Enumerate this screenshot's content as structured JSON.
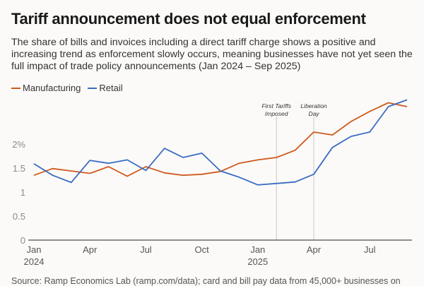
{
  "title": "Tariff announcement does not equal enforcement",
  "subtitle": "The share of bills and invoices including a direct tariff charge shows a positive and increasing trend as enforcement slowly occurs, meaning businesses have not yet seen the full impact of trade policy announcements (Jan 2024 – Sep 2025)",
  "footer": "Source: Ramp Economics Lab (ramp.com/data); card and bill pay data from 45,000+ businesses on",
  "colors": {
    "manufacturing": "#cf5a1c",
    "retail": "#3b6cc4"
  },
  "chart_data": {
    "type": "line",
    "title": "Tariff announcement does not equal enforcement",
    "xlabel": "",
    "ylabel": "",
    "ylim": [
      0,
      3
    ],
    "grid": false,
    "legend_position": "top-left",
    "x": [
      "Jan 2024",
      "Feb 2024",
      "Mar 2024",
      "Apr 2024",
      "May 2024",
      "Jun 2024",
      "Jul 2024",
      "Aug 2024",
      "Sep 2024",
      "Oct 2024",
      "Nov 2024",
      "Dec 2024",
      "Jan 2025",
      "Feb 2025",
      "Mar 2025",
      "Apr 2025",
      "May 2025",
      "Jun 2025",
      "Jul 2025",
      "Aug 2025",
      "Sep 2025"
    ],
    "x_ticks": [
      {
        "index": 0,
        "label": "Jan",
        "sub": "2024"
      },
      {
        "index": 3,
        "label": "Apr",
        "sub": ""
      },
      {
        "index": 6,
        "label": "Jul",
        "sub": ""
      },
      {
        "index": 9,
        "label": "Oct",
        "sub": ""
      },
      {
        "index": 12,
        "label": "Jan",
        "sub": "2025"
      },
      {
        "index": 15,
        "label": "Apr",
        "sub": ""
      },
      {
        "index": 18,
        "label": "Jul",
        "sub": ""
      }
    ],
    "y_ticks": [
      {
        "value": 0,
        "label": "0"
      },
      {
        "value": 0.5,
        "label": "0.5"
      },
      {
        "value": 1,
        "label": "1"
      },
      {
        "value": 1.5,
        "label": "1.5"
      },
      {
        "value": 2,
        "label": "2%"
      }
    ],
    "series": [
      {
        "name": "Manufacturing",
        "color": "#cf5a1c",
        "values": [
          1.35,
          1.49,
          1.44,
          1.39,
          1.53,
          1.33,
          1.53,
          1.4,
          1.35,
          1.37,
          1.43,
          1.6,
          1.67,
          1.72,
          1.87,
          2.25,
          2.19,
          2.47,
          2.68,
          2.86,
          2.78
        ]
      },
      {
        "name": "Retail",
        "color": "#3b6cc4",
        "values": [
          1.59,
          1.35,
          1.2,
          1.66,
          1.6,
          1.67,
          1.45,
          1.91,
          1.72,
          1.81,
          1.44,
          1.31,
          1.15,
          1.18,
          1.21,
          1.37,
          1.93,
          2.16,
          2.25,
          2.78,
          2.92
        ]
      }
    ],
    "annotations": [
      {
        "index": 13,
        "lines": [
          "First Tariffs",
          "Imposed"
        ]
      },
      {
        "index": 15,
        "lines": [
          "Liberation",
          "Day"
        ]
      }
    ]
  }
}
